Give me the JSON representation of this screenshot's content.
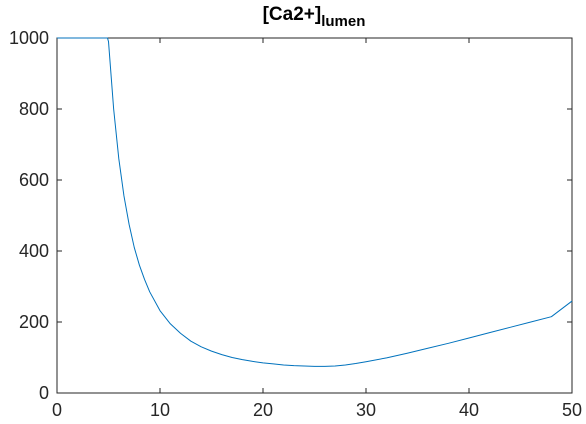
{
  "chart_data": {
    "type": "line",
    "title": "[Ca2+]",
    "title_subscript": "lumen",
    "xlabel": "",
    "ylabel": "",
    "xlim": [
      0,
      50
    ],
    "ylim": [
      0,
      1000
    ],
    "x_ticks": [
      0,
      10,
      20,
      30,
      40,
      50
    ],
    "y_ticks": [
      0,
      200,
      400,
      600,
      800,
      1000
    ],
    "grid": false,
    "line_color": "#0072BD",
    "series": [
      {
        "x": [
          0,
          4.9,
          5.0,
          5.5,
          6.0,
          6.5,
          7.0,
          7.5,
          8.0,
          8.5,
          9.0,
          10.0,
          11.0,
          12.0,
          13.0,
          14.0,
          15.0,
          16.0,
          17.0,
          18.0,
          19.0,
          20.0,
          21.0,
          22.0,
          23.0,
          24.0,
          25.0,
          26.0,
          27.0,
          28.0,
          29.0,
          30.0,
          32.0,
          34.0,
          36.0,
          38.0,
          40.0,
          42.0,
          44.0,
          46.0,
          48.0,
          50.0
        ],
        "y": [
          1000,
          1000,
          990,
          800,
          660,
          555,
          475,
          410,
          360,
          320,
          285,
          232,
          195,
          168,
          146,
          130,
          118,
          108,
          100,
          94,
          89,
          85,
          82,
          79,
          77,
          76,
          75,
          75,
          76,
          79,
          83,
          88,
          99,
          112,
          126,
          140,
          155,
          170,
          185,
          200,
          215,
          259
        ]
      }
    ]
  }
}
